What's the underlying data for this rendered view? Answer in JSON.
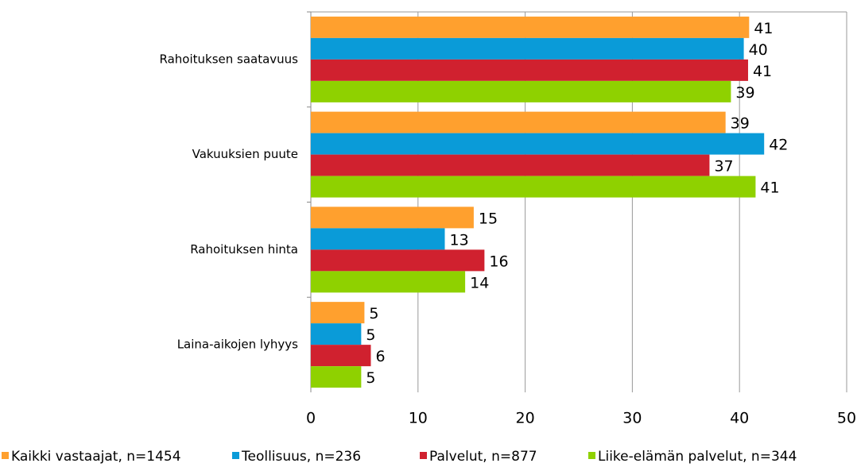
{
  "chart_data": {
    "type": "hbar",
    "categories": [
      "Rahoituksen saatavuus",
      "Vakuuksien puute",
      "Rahoituksen hinta",
      "Laina-aikojen lyhyys"
    ],
    "series": [
      {
        "name": "Kaikki vastaajat, n=1454",
        "color": "#ffa02e",
        "values": [
          40.9,
          38.7,
          15.2,
          5.0
        ],
        "value_labels": [
          41,
          39,
          15,
          5
        ]
      },
      {
        "name": "Teollisuus, n=236",
        "color": "#0a9bd8",
        "values": [
          40.4,
          42.3,
          12.5,
          4.7
        ],
        "value_labels": [
          40,
          42,
          13,
          5
        ]
      },
      {
        "name": "Palvelut, n=877",
        "color": "#d0212f",
        "values": [
          40.8,
          37.2,
          16.2,
          5.6
        ],
        "value_labels": [
          41,
          37,
          16,
          6
        ]
      },
      {
        "name": "Liike-elämän palvelut, n=344",
        "color": "#8fd100",
        "values": [
          39.2,
          41.5,
          14.4,
          4.7
        ],
        "value_labels": [
          39,
          41,
          14,
          5
        ]
      }
    ],
    "xlim": [
      0,
      50
    ],
    "xticks": [
      0,
      10,
      20,
      30,
      40,
      50
    ],
    "grid": true,
    "legend": "bottom"
  }
}
